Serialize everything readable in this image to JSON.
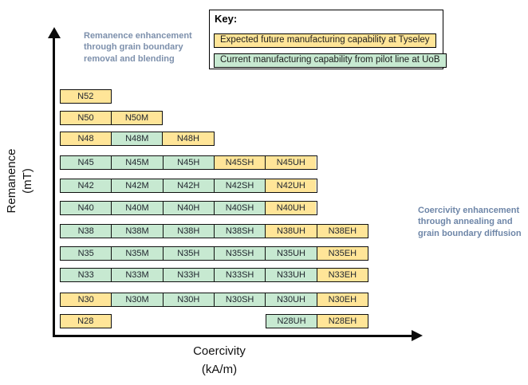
{
  "axes": {
    "y": {
      "line1": "Remanence",
      "line2": "(mT)"
    },
    "x": {
      "line1": "Coercivity",
      "line2": "(kA/m)"
    }
  },
  "key": {
    "title": "Key:",
    "items": [
      {
        "id": "future",
        "label": "Expected future manufacturing capability at Tyseley"
      },
      {
        "id": "current",
        "label": "Current manufacturing capability from pilot line at UoB"
      }
    ]
  },
  "annotations": {
    "left": "Remanence enhancement through grain boundary removal and blending",
    "right": "Coercivity enhancement through annealing and grain boundary diffusion"
  },
  "colors": {
    "future": "#FFE598",
    "current": "#C7E9D1",
    "border": "#101010",
    "annotation_left": "#7D90AC",
    "annotation_right": "#6E86A8"
  },
  "grid": {
    "column_suffixes": [
      "",
      "M",
      "H",
      "SH",
      "UH",
      "EH"
    ],
    "rows": [
      {
        "grade": "N52",
        "cells": [
          {
            "label": "N52",
            "col": 0,
            "type": "future"
          }
        ]
      },
      {
        "grade": "N50",
        "cells": [
          {
            "label": "N50",
            "col": 0,
            "type": "future"
          },
          {
            "label": "N50M",
            "col": 1,
            "type": "future"
          }
        ]
      },
      {
        "grade": "N48",
        "cells": [
          {
            "label": "N48",
            "col": 0,
            "type": "future"
          },
          {
            "label": "N48M",
            "col": 1,
            "type": "current"
          },
          {
            "label": "N48H",
            "col": 2,
            "type": "future"
          }
        ]
      },
      {
        "grade": "N45",
        "cells": [
          {
            "label": "N45",
            "col": 0,
            "type": "current"
          },
          {
            "label": "N45M",
            "col": 1,
            "type": "current"
          },
          {
            "label": "N45H",
            "col": 2,
            "type": "current"
          },
          {
            "label": "N45SH",
            "col": 3,
            "type": "future"
          },
          {
            "label": "N45UH",
            "col": 4,
            "type": "future"
          }
        ]
      },
      {
        "grade": "N42",
        "cells": [
          {
            "label": "N42",
            "col": 0,
            "type": "current"
          },
          {
            "label": "N42M",
            "col": 1,
            "type": "current"
          },
          {
            "label": "N42H",
            "col": 2,
            "type": "current"
          },
          {
            "label": "N42SH",
            "col": 3,
            "type": "current"
          },
          {
            "label": "N42UH",
            "col": 4,
            "type": "future"
          }
        ]
      },
      {
        "grade": "N40",
        "cells": [
          {
            "label": "N40",
            "col": 0,
            "type": "current"
          },
          {
            "label": "N40M",
            "col": 1,
            "type": "current"
          },
          {
            "label": "N40H",
            "col": 2,
            "type": "current"
          },
          {
            "label": "N40SH",
            "col": 3,
            "type": "current"
          },
          {
            "label": "N40UH",
            "col": 4,
            "type": "future"
          }
        ]
      },
      {
        "grade": "N38",
        "cells": [
          {
            "label": "N38",
            "col": 0,
            "type": "current"
          },
          {
            "label": "N38M",
            "col": 1,
            "type": "current"
          },
          {
            "label": "N38H",
            "col": 2,
            "type": "current"
          },
          {
            "label": "N38SH",
            "col": 3,
            "type": "current"
          },
          {
            "label": "N38UH",
            "col": 4,
            "type": "future"
          },
          {
            "label": "N38EH",
            "col": 5,
            "type": "future"
          }
        ]
      },
      {
        "grade": "N35",
        "cells": [
          {
            "label": "N35",
            "col": 0,
            "type": "current"
          },
          {
            "label": "N35M",
            "col": 1,
            "type": "current"
          },
          {
            "label": "N35H",
            "col": 2,
            "type": "current"
          },
          {
            "label": "N35SH",
            "col": 3,
            "type": "current"
          },
          {
            "label": "N35UH",
            "col": 4,
            "type": "current"
          },
          {
            "label": "N35EH",
            "col": 5,
            "type": "future"
          }
        ]
      },
      {
        "grade": "N33",
        "cells": [
          {
            "label": "N33",
            "col": 0,
            "type": "current"
          },
          {
            "label": "N33M",
            "col": 1,
            "type": "current"
          },
          {
            "label": "N33H",
            "col": 2,
            "type": "current"
          },
          {
            "label": "N33SH",
            "col": 3,
            "type": "current"
          },
          {
            "label": "N33UH",
            "col": 4,
            "type": "current"
          },
          {
            "label": "N33EH",
            "col": 5,
            "type": "future"
          }
        ]
      },
      {
        "grade": "N30",
        "cells": [
          {
            "label": "N30",
            "col": 0,
            "type": "future"
          },
          {
            "label": "N30M",
            "col": 1,
            "type": "current"
          },
          {
            "label": "N30H",
            "col": 2,
            "type": "current"
          },
          {
            "label": "N30SH",
            "col": 3,
            "type": "current"
          },
          {
            "label": "N30UH",
            "col": 4,
            "type": "current"
          },
          {
            "label": "N30EH",
            "col": 5,
            "type": "future"
          }
        ]
      },
      {
        "grade": "N28",
        "cells": [
          {
            "label": "N28",
            "col": 0,
            "type": "future"
          },
          {
            "label": "N28UH",
            "col": 4,
            "type": "current"
          },
          {
            "label": "N28EH",
            "col": 5,
            "type": "future"
          }
        ]
      }
    ]
  }
}
